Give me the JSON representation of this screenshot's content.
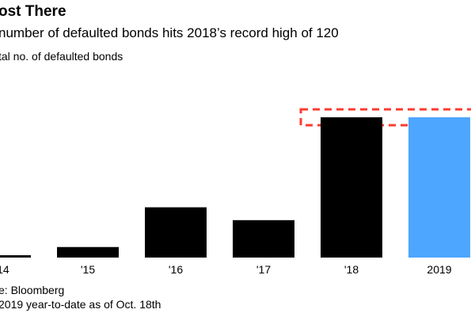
{
  "header": {
    "title": "ost There",
    "subtitle": "number of defaulted bonds hits 2018’s record high of 120",
    "ylabel": "tal no. of defaulted bonds"
  },
  "footer": {
    "source": "e: Bloomberg",
    "note": "2019 year-to-date as of Oct. 18th"
  },
  "colors": {
    "bar": "#000000",
    "highlight": "#4da6ff",
    "reference": "#ff3b30"
  },
  "chart_data": {
    "type": "bar",
    "categories": [
      "014",
      "'15",
      "'16",
      "'17",
      "'18",
      "2019"
    ],
    "values": [
      2,
      9,
      43,
      32,
      120,
      120
    ],
    "highlight_index": 5,
    "reference_value": 120,
    "reference_style": "dashed box around record level",
    "ylim": [
      0,
      120
    ],
    "grid": false
  }
}
